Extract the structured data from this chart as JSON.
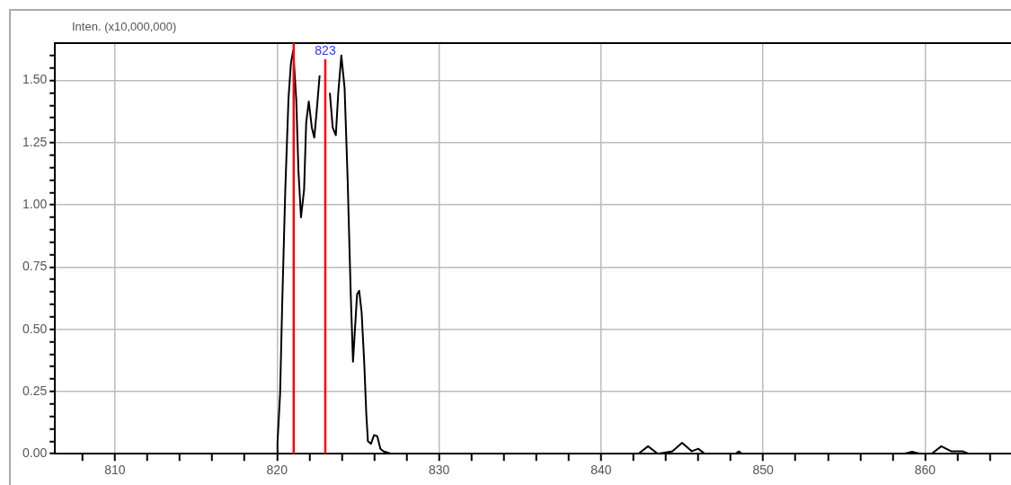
{
  "chart_data": {
    "type": "line",
    "ylabel": "Inten. (x10,000,000)",
    "x": [
      806.3,
      820.0,
      820.03,
      820.19,
      820.32,
      820.51,
      820.71,
      820.86,
      821.0,
      821.19,
      821.32,
      821.48,
      821.67,
      821.8,
      821.96,
      822.15,
      822.3,
      822.44,
      822.63,
      822.78,
      823.01,
      823.26,
      823.44,
      823.63,
      823.78,
      823.97,
      824.17,
      824.36,
      824.55,
      824.69,
      824.94,
      825.07,
      825.22,
      825.38,
      825.51,
      825.61,
      825.8,
      825.99,
      826.19,
      826.38,
      826.57,
      827.05,
      842.3,
      842.9,
      843.5,
      844.4,
      845.0,
      845.6,
      846.0,
      846.4,
      848.3,
      848.5,
      848.7,
      858.7,
      859.2,
      859.7,
      860.4,
      861.0,
      861.6,
      862.3,
      862.7,
      865.3
    ],
    "series": [
      {
        "color": "#000000",
        "values": [
          0,
          0,
          0.045,
          0.24,
          0.6,
          1.06,
          1.43,
          1.57,
          1.62,
          1.42,
          1.14,
          0.95,
          1.06,
          1.33,
          1.415,
          1.31,
          1.27,
          1.37,
          1.52,
          null,
          null,
          1.45,
          1.31,
          1.28,
          1.45,
          1.6,
          1.47,
          1.1,
          0.64,
          0.37,
          0.64,
          0.655,
          0.57,
          0.37,
          0.16,
          0.05,
          0.04,
          0.075,
          0.07,
          0.02,
          0.01,
          0,
          0,
          0.03,
          0,
          0.01,
          0.044,
          0.01,
          0.02,
          0,
          0,
          0.01,
          0,
          0,
          0.008,
          0,
          0,
          0.03,
          0.01,
          0.01,
          0,
          0
        ]
      }
    ],
    "xlim": [
      806.3,
      865.3
    ],
    "ylim": [
      0,
      1.65
    ],
    "xticks": [
      {
        "value": 808,
        "label": null
      },
      810,
      {
        "value": 812,
        "label": null
      },
      {
        "value": 814,
        "label": null
      },
      {
        "value": 816,
        "label": null
      },
      {
        "value": 818,
        "label": null
      },
      820,
      {
        "value": 822,
        "label": null
      },
      {
        "value": 824,
        "label": null
      },
      {
        "value": 826,
        "label": null
      },
      {
        "value": 828,
        "label": null
      },
      830,
      {
        "value": 832,
        "label": null
      },
      {
        "value": 834,
        "label": null
      },
      {
        "value": 836,
        "label": null
      },
      {
        "value": 838,
        "label": null
      },
      840,
      {
        "value": 842,
        "label": null
      },
      {
        "value": 844,
        "label": null
      },
      {
        "value": 846,
        "label": null
      },
      {
        "value": 848,
        "label": null
      },
      850,
      {
        "value": 852,
        "label": null
      },
      {
        "value": 854,
        "label": null
      },
      {
        "value": 856,
        "label": null
      },
      {
        "value": 858,
        "label": null
      },
      860,
      {
        "value": 862,
        "label": null
      },
      {
        "value": 864,
        "label": null
      }
    ],
    "yticks": [
      {
        "value": 0,
        "label": "0.00"
      },
      {
        "value": 0.05,
        "label": null
      },
      {
        "value": 0.1,
        "label": null
      },
      {
        "value": 0.15,
        "label": null
      },
      {
        "value": 0.2,
        "label": null
      },
      {
        "value": 0.25,
        "label": "0.25"
      },
      {
        "value": 0.3,
        "label": null
      },
      {
        "value": 0.35,
        "label": null
      },
      {
        "value": 0.4,
        "label": null
      },
      {
        "value": 0.45,
        "label": null
      },
      {
        "value": 0.5,
        "label": "0.50"
      },
      {
        "value": 0.55,
        "label": null
      },
      {
        "value": 0.6,
        "label": null
      },
      {
        "value": 0.65,
        "label": null
      },
      {
        "value": 0.7,
        "label": null
      },
      {
        "value": 0.75,
        "label": "0.75"
      },
      {
        "value": 0.8,
        "label": null
      },
      {
        "value": 0.85,
        "label": null
      },
      {
        "value": 0.9,
        "label": null
      },
      {
        "value": 0.95,
        "label": null
      },
      {
        "value": 1.0,
        "label": "1.00"
      },
      {
        "value": 1.05,
        "label": null
      },
      {
        "value": 1.1,
        "label": null
      },
      {
        "value": 1.15,
        "label": null
      },
      {
        "value": 1.2,
        "label": null
      },
      {
        "value": 1.25,
        "label": "1.25"
      },
      {
        "value": 1.3,
        "label": null
      },
      {
        "value": 1.35,
        "label": null
      },
      {
        "value": 1.4,
        "label": null
      },
      {
        "value": 1.45,
        "label": null
      },
      {
        "value": 1.5,
        "label": "1.50"
      },
      {
        "value": 1.55,
        "label": null
      },
      {
        "value": 1.6,
        "label": null
      }
    ],
    "ref_lines": [
      {
        "axis": "x",
        "value": 821.03,
        "color": "#ff0000"
      },
      {
        "axis": "x",
        "value": 822.98,
        "label": "823",
        "color": "#ff0000"
      }
    ],
    "grid": true,
    "legend": false,
    "marker": "none",
    "line_style": "solid"
  }
}
